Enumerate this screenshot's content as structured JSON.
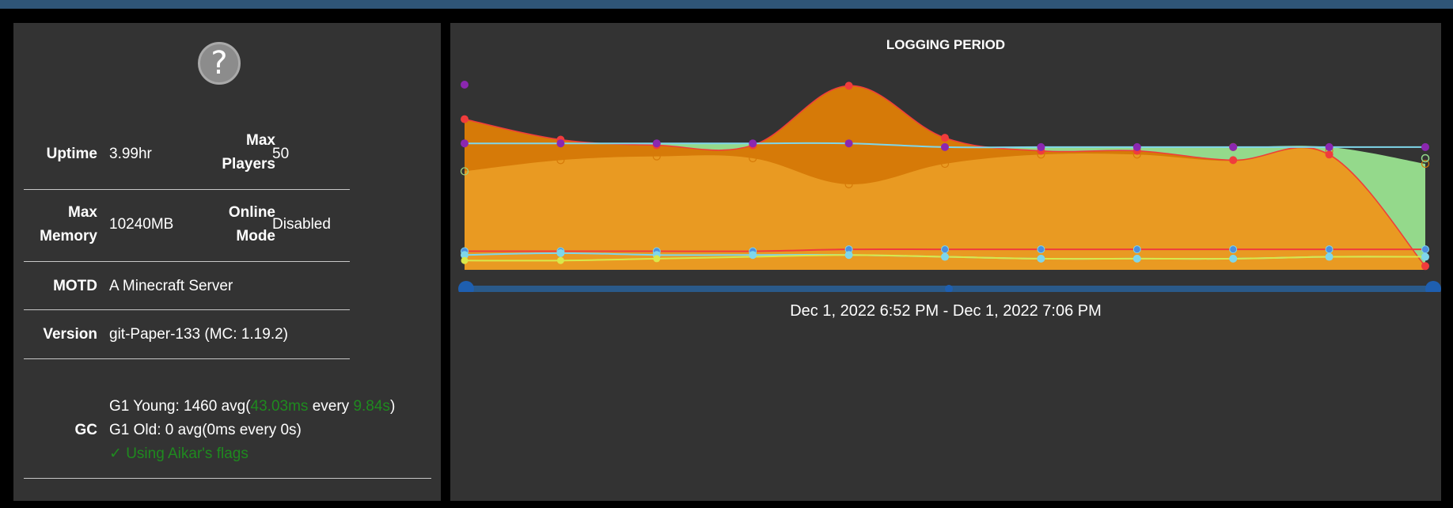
{
  "info": {
    "uptime_label": "Uptime",
    "uptime_value": "3.99hr",
    "max_players_label_1": "Max",
    "max_players_label_2": "Players",
    "max_players_value": "50",
    "max_memory_label_1": "Max",
    "max_memory_label_2": "Memory",
    "max_memory_value": "10240MB",
    "online_mode_label_1": "Online",
    "online_mode_label_2": "Mode",
    "online_mode_value": "Disabled",
    "motd_label": "MOTD",
    "motd_value": "A Minecraft Server",
    "version_label": "Version",
    "version_value": "git-Paper-133 (MC: 1.19.2)",
    "gc_label": "GC",
    "gc_young_prefix": "G1 Young: 1460 avg(",
    "gc_young_time": "43.03ms",
    "gc_young_every": " every ",
    "gc_young_interval": "9.84s",
    "gc_young_suffix": ")",
    "gc_old": "G1 Old: 0 avg(0ms every 0s)",
    "aikar": "✓ Using Aikar's flags"
  },
  "chart": {
    "title": "LOGGING PERIOD",
    "range": "Dec 1, 2022 6:52 PM - Dec 1, 2022 7:06 PM"
  },
  "colors": {
    "orange_dark": "#d67a08",
    "orange_light": "#e99a22",
    "red_line": "#f03c3c",
    "purple": "#8b27b0",
    "light_blue": "#7fd6ea",
    "green_fill": "#94d98b",
    "yellow": "#d9e84a",
    "slider_blue": "#1e5fb0"
  },
  "chart_data": {
    "type": "area",
    "title": "LOGGING PERIOD",
    "x_count": 11,
    "series": [
      {
        "values": [
          0.81,
          0.7,
          0.67,
          0.67,
          0.99,
          0.71,
          0.64,
          0.64,
          0.59,
          0.62,
          0.02
        ]
      },
      {
        "values": [
          0.53,
          0.59,
          0.61,
          0.6,
          0.46,
          0.57,
          0.62,
          0.62,
          0.66,
          0.64,
          0.57
        ]
      },
      {
        "values": [
          0.68,
          0.68,
          0.68,
          0.68,
          0.68,
          0.66,
          0.66,
          0.66,
          0.66,
          0.66,
          0.66
        ]
      },
      {
        "values": [
          0.1,
          0.1,
          0.1,
          0.1,
          0.11,
          0.11,
          0.11,
          0.11,
          0.11,
          0.11,
          0.11
        ]
      },
      {
        "values": [
          0.08,
          0.09,
          0.08,
          0.08,
          0.08,
          0.07,
          0.06,
          0.06,
          0.06,
          0.07,
          0.07
        ]
      },
      {
        "values": [
          0.05,
          0.05,
          0.06,
          0.07,
          0.08,
          0.07,
          0.06,
          0.06,
          0.06,
          0.07,
          0.07
        ]
      }
    ]
  }
}
